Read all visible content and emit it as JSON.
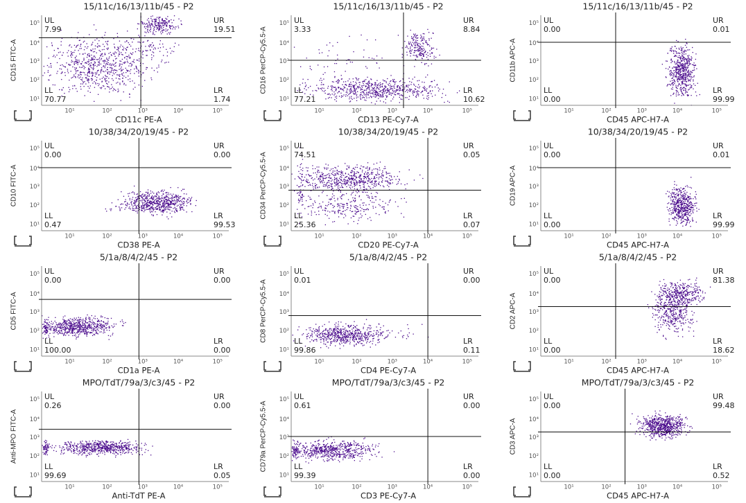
{
  "axis_ticks": [
    "10¹",
    "10²",
    "10³",
    "10⁴",
    "10⁵"
  ],
  "panels": [
    {
      "title": "15/11c/16/13/11b/45 - P2",
      "y_label": "CD15 FITC-A",
      "x_label": "CD11c PE-A",
      "quadrants": [
        {
          "name": "UL",
          "value": "7.99"
        },
        {
          "name": "UR",
          "value": "19.51"
        },
        {
          "name": "LL",
          "value": "70.77"
        },
        {
          "name": "LR",
          "value": "1.74"
        }
      ]
    },
    {
      "title": "15/11c/16/13/11b/45 - P2",
      "y_label": "CD16 PerCP-Cy5.5-A",
      "x_label": "CD13 PE-Cy7-A",
      "quadrants": [
        {
          "name": "UL",
          "value": "3.33"
        },
        {
          "name": "UR",
          "value": "8.84"
        },
        {
          "name": "LL",
          "value": "77.21"
        },
        {
          "name": "LR",
          "value": "10.62"
        }
      ]
    },
    {
      "title": "15/11c/16/13/11b/45 - P2",
      "y_label": "CD11b APC-A",
      "x_label": "CD45 APC-H7-A",
      "quadrants": [
        {
          "name": "UL",
          "value": "0.00"
        },
        {
          "name": "UR",
          "value": "0.01"
        },
        {
          "name": "LL",
          "value": "0.00"
        },
        {
          "name": "LR",
          "value": "99.99"
        }
      ]
    },
    {
      "title": "10/38/34/20/19/45 - P2",
      "y_label": "CD10 FITC-A",
      "x_label": "CD38 PE-A",
      "quadrants": [
        {
          "name": "UL",
          "value": "0.00"
        },
        {
          "name": "UR",
          "value": "0.00"
        },
        {
          "name": "LL",
          "value": "0.47"
        },
        {
          "name": "LR",
          "value": "99.53"
        }
      ]
    },
    {
      "title": "10/38/34/20/19/45 - P2",
      "y_label": "CD34 PerCP-Cy5.5-A",
      "x_label": "CD20 PE-Cy7-A",
      "quadrants": [
        {
          "name": "UL",
          "value": "74.51"
        },
        {
          "name": "UR",
          "value": "0.05"
        },
        {
          "name": "LL",
          "value": "25.36"
        },
        {
          "name": "LR",
          "value": "0.07"
        }
      ]
    },
    {
      "title": "10/38/34/20/19/45 - P2",
      "y_label": "CD19 APC-A",
      "x_label": "CD45 APC-H7-A",
      "quadrants": [
        {
          "name": "UL",
          "value": "0.00"
        },
        {
          "name": "UR",
          "value": "0.01"
        },
        {
          "name": "LL",
          "value": "0.00"
        },
        {
          "name": "LR",
          "value": "99.99"
        }
      ]
    },
    {
      "title": "5/1a/8/4/2/45 - P2",
      "y_label": "CD5 FITC-A",
      "x_label": "CD1a PE-A",
      "quadrants": [
        {
          "name": "UL",
          "value": "0.00"
        },
        {
          "name": "UR",
          "value": "0.00"
        },
        {
          "name": "LL",
          "value": "100.00"
        },
        {
          "name": "LR",
          "value": "0.00"
        }
      ]
    },
    {
      "title": "5/1a/8/4/2/45 - P2",
      "y_label": "CD8 PerCP-Cy5.5-A",
      "x_label": "CD4 PE-Cy7-A",
      "quadrants": [
        {
          "name": "UL",
          "value": "0.01"
        },
        {
          "name": "UR",
          "value": "0.00"
        },
        {
          "name": "LL",
          "value": "99.86"
        },
        {
          "name": "LR",
          "value": "0.11"
        }
      ]
    },
    {
      "title": "5/1a/8/4/2/45 - P2",
      "y_label": "CD2 APC-A",
      "x_label": "CD45 APC-H7-A",
      "quadrants": [
        {
          "name": "UL",
          "value": "0.00"
        },
        {
          "name": "UR",
          "value": "81.38"
        },
        {
          "name": "LL",
          "value": "0.00"
        },
        {
          "name": "LR",
          "value": "18.62"
        }
      ]
    },
    {
      "title": "MPO/TdT/79a/3/c3/45 - P2",
      "y_label": "Anti-MPO FITC-A",
      "x_label": "Anti-TdT PE-A",
      "quadrants": [
        {
          "name": "UL",
          "value": "0.26"
        },
        {
          "name": "UR",
          "value": "0.00"
        },
        {
          "name": "LL",
          "value": "99.69"
        },
        {
          "name": "LR",
          "value": "0.05"
        }
      ]
    },
    {
      "title": "MPO/TdT/79a/3/c3/45 - P2",
      "y_label": "CD79a PerCP-Cy5.5-A",
      "x_label": "CD3 PE-Cy7-A",
      "quadrants": [
        {
          "name": "UL",
          "value": "0.61"
        },
        {
          "name": "UR",
          "value": "0.00"
        },
        {
          "name": "LL",
          "value": "99.39"
        },
        {
          "name": "LR",
          "value": "0.00"
        }
      ]
    },
    {
      "title": "MPO/TdT/79a/3/c3/45 - P2",
      "y_label": "CD3 APC-A",
      "x_label": "CD45 APC-H7-A",
      "quadrants": [
        {
          "name": "UL",
          "value": "0.00"
        },
        {
          "name": "UR",
          "value": "99.48"
        },
        {
          "name": "LL",
          "value": "0.00"
        },
        {
          "name": "LR",
          "value": "0.52"
        }
      ]
    }
  ]
}
